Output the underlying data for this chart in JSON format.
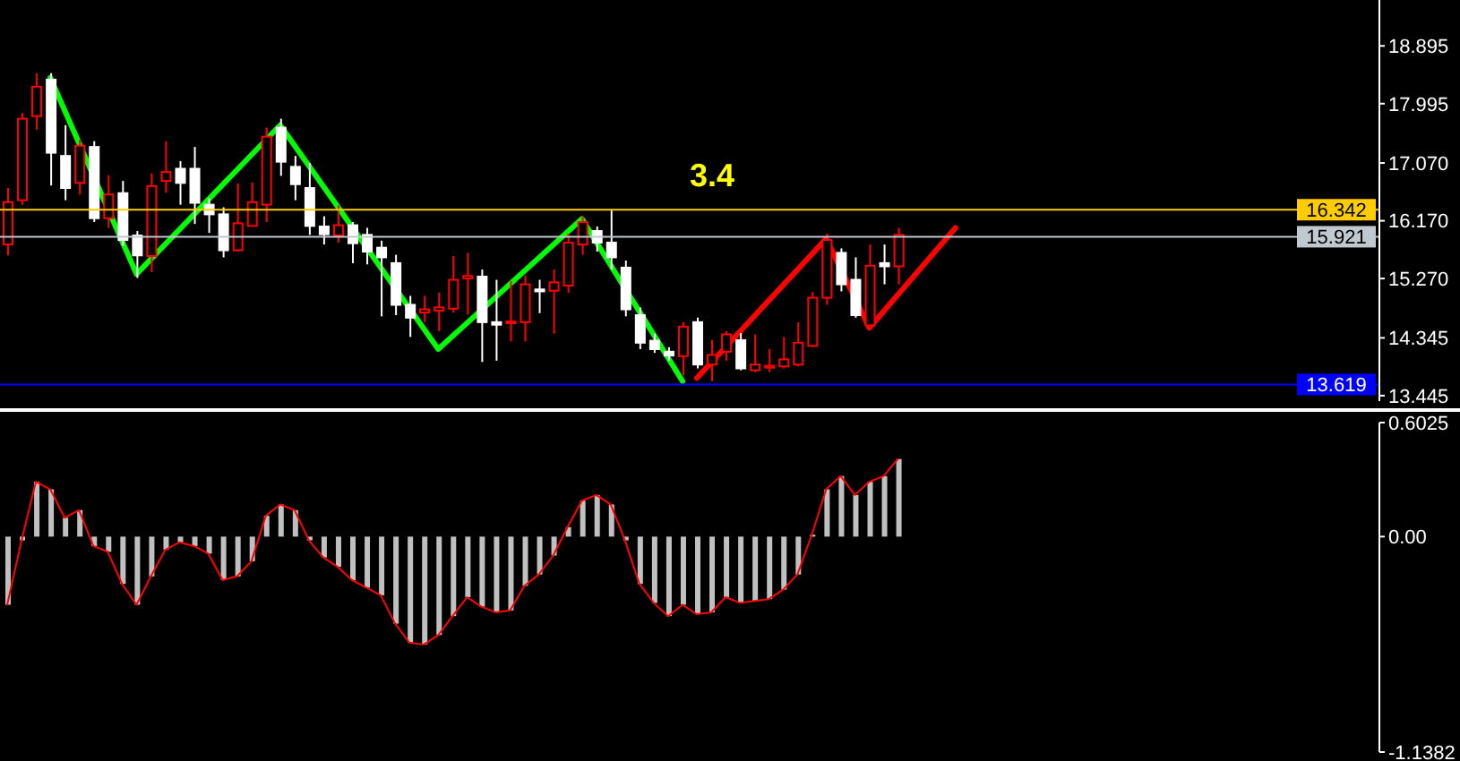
{
  "chart_data": [
    {
      "type": "candlestick",
      "categories": [
        null,
        null,
        null,
        null,
        null,
        null,
        null,
        null,
        null,
        null,
        null,
        null,
        null,
        null,
        null,
        null,
        null,
        null,
        null,
        null,
        null,
        null,
        null,
        null,
        null,
        null,
        null,
        null,
        null,
        null,
        null,
        null,
        null,
        null,
        null,
        null,
        null,
        null,
        null,
        null,
        null,
        null,
        null,
        null,
        null,
        null,
        null,
        null,
        null,
        null,
        null,
        null,
        null,
        null,
        null,
        null,
        null,
        null,
        null,
        null,
        null,
        null,
        null,
        null,
        null,
        null,
        null,
        null,
        null,
        null,
        null,
        null,
        null,
        null,
        null,
        null,
        null,
        null,
        null,
        null,
        null,
        null,
        null,
        null,
        null,
        null,
        null,
        null,
        null,
        null,
        null,
        null,
        null,
        null,
        null,
        null
      ],
      "ohlc": [
        [
          15.8,
          16.68,
          15.63,
          16.46
        ],
        [
          16.49,
          17.85,
          16.42,
          17.76
        ],
        [
          17.8,
          18.47,
          17.59,
          18.26
        ],
        [
          18.37,
          18.47,
          16.72,
          17.23
        ],
        [
          17.18,
          17.66,
          16.49,
          16.68
        ],
        [
          16.76,
          17.43,
          16.58,
          17.34
        ],
        [
          17.32,
          17.41,
          16.15,
          16.21
        ],
        [
          16.21,
          16.88,
          16.06,
          16.58
        ],
        [
          16.6,
          16.79,
          15.78,
          15.87
        ],
        [
          15.94,
          16.01,
          15.28,
          15.63
        ],
        [
          15.62,
          16.91,
          15.37,
          16.71
        ],
        [
          16.79,
          17.41,
          16.61,
          16.93
        ],
        [
          16.98,
          17.1,
          16.42,
          16.76
        ],
        [
          16.98,
          17.32,
          16.12,
          16.45
        ],
        [
          16.42,
          16.52,
          15.98,
          16.27
        ],
        [
          16.27,
          16.38,
          15.6,
          15.71
        ],
        [
          15.71,
          16.75,
          15.69,
          16.13
        ],
        [
          16.09,
          16.77,
          16.08,
          16.46
        ],
        [
          16.42,
          17.62,
          16.15,
          17.48
        ],
        [
          17.62,
          17.76,
          16.87,
          17.09
        ],
        [
          17.01,
          17.18,
          16.49,
          16.74
        ],
        [
          16.68,
          17.07,
          15.95,
          16.09
        ],
        [
          16.08,
          16.24,
          15.8,
          15.96
        ],
        [
          15.94,
          16.41,
          15.83,
          16.1
        ],
        [
          16.1,
          16.15,
          15.51,
          15.82
        ],
        [
          15.95,
          16.06,
          15.49,
          15.69
        ],
        [
          15.75,
          15.86,
          14.68,
          15.6
        ],
        [
          15.51,
          15.64,
          14.7,
          14.86
        ],
        [
          14.86,
          15.0,
          14.36,
          14.66
        ],
        [
          14.74,
          15.0,
          14.59,
          14.79
        ],
        [
          14.77,
          15.05,
          14.45,
          14.82
        ],
        [
          14.8,
          15.62,
          14.74,
          15.25
        ],
        [
          15.27,
          15.67,
          14.71,
          15.31
        ],
        [
          15.3,
          15.41,
          13.97,
          14.59
        ],
        [
          14.59,
          15.25,
          13.99,
          14.55
        ],
        [
          14.58,
          15.23,
          14.29,
          14.6
        ],
        [
          14.59,
          15.32,
          14.29,
          15.18
        ],
        [
          15.1,
          15.25,
          14.73,
          15.07
        ],
        [
          15.08,
          15.41,
          14.41,
          15.21
        ],
        [
          15.16,
          15.97,
          15.05,
          15.83
        ],
        [
          15.8,
          16.24,
          15.64,
          16.15
        ],
        [
          16.01,
          16.08,
          15.69,
          15.83
        ],
        [
          15.83,
          16.33,
          15.41,
          15.6
        ],
        [
          15.44,
          15.55,
          14.68,
          14.79
        ],
        [
          14.7,
          14.82,
          14.17,
          14.27
        ],
        [
          14.3,
          14.41,
          14.11,
          14.17
        ],
        [
          14.13,
          14.2,
          13.99,
          14.07
        ],
        [
          14.06,
          14.59,
          13.76,
          14.52
        ],
        [
          14.59,
          14.66,
          13.87,
          13.93
        ],
        [
          13.93,
          14.31,
          13.67,
          14.08
        ],
        [
          14.13,
          14.45,
          13.99,
          14.4
        ],
        [
          14.31,
          14.42,
          13.84,
          13.87
        ],
        [
          13.84,
          14.4,
          13.81,
          13.93
        ],
        [
          13.88,
          14.17,
          13.81,
          13.91
        ],
        [
          13.9,
          14.36,
          13.87,
          14.01
        ],
        [
          13.93,
          14.59,
          13.9,
          14.27
        ],
        [
          14.22,
          15.06,
          14.2,
          14.97
        ],
        [
          14.97,
          15.97,
          14.86,
          15.87
        ],
        [
          15.67,
          15.74,
          15.07,
          15.18
        ],
        [
          15.25,
          15.6,
          14.66,
          14.7
        ],
        [
          14.54,
          15.8,
          14.5,
          15.47
        ],
        [
          15.51,
          15.8,
          15.18,
          15.46
        ],
        [
          15.46,
          16.06,
          15.18,
          15.95
        ],
        null,
        null,
        null,
        null,
        null,
        null,
        null,
        null,
        null,
        null,
        null,
        null,
        null,
        null,
        null,
        null,
        null,
        null,
        null,
        null,
        null,
        null,
        null,
        null,
        null,
        null,
        null,
        null,
        null,
        null,
        null,
        null,
        null
      ],
      "colors": [
        "#ff0000",
        "#ff0000",
        "#ff0000",
        "#ffffff",
        "#ffffff",
        "#ff0000",
        "#ffffff",
        "#ff0000",
        "#ffffff",
        "#ffffff",
        "#ff0000",
        "#ff0000",
        "#ffffff",
        "#ffffff",
        "#ffffff",
        "#ffffff",
        "#ff0000",
        "#ff0000",
        "#ff0000",
        "#ffffff",
        "#ffffff",
        "#ffffff",
        "#ffffff",
        "#ff0000",
        "#ffffff",
        "#ffffff",
        "#ffffff",
        "#ffffff",
        "#ffffff",
        "#ff0000",
        "#ff0000",
        "#ff0000",
        "#ff0000",
        "#ffffff",
        "#ffffff",
        "#ff0000",
        "#ff0000",
        "#ffffff",
        "#ff0000",
        "#ff0000",
        "#ff0000",
        "#ffffff",
        "#ffffff",
        "#ffffff",
        "#ffffff",
        "#ffffff",
        "#ffffff",
        "#ff0000",
        "#ffffff",
        "#ff0000",
        "#ff0000",
        "#ffffff",
        "#ff0000",
        "#ff0000",
        "#ff0000",
        "#ff0000",
        "#ff0000",
        "#ff0000",
        "#ffffff",
        "#ffffff",
        "#ff0000",
        "#ffffff",
        "#ff0000",
        null,
        null,
        null,
        null,
        null,
        null,
        null,
        null,
        null,
        null,
        null,
        null,
        null,
        null,
        null,
        null,
        null,
        null,
        null,
        null,
        null,
        null,
        null,
        null,
        null,
        null,
        null,
        null,
        null,
        null,
        null,
        null,
        null
      ],
      "series": [
        {
          "type": "line",
          "color": "#00ff00",
          "values": [
            null,
            null,
            null,
            18.4,
            null,
            null,
            null,
            null,
            null,
            15.34,
            null,
            null,
            null,
            null,
            null,
            null,
            null,
            null,
            null,
            17.66,
            null,
            null,
            null,
            null,
            null,
            null,
            null,
            null,
            null,
            null,
            14.17,
            null,
            null,
            null,
            null,
            null,
            null,
            null,
            null,
            null,
            16.2,
            null,
            null,
            null,
            null,
            null,
            null,
            13.67,
            null,
            null,
            null,
            null,
            null,
            null,
            null,
            null,
            null,
            null,
            null,
            null,
            null,
            null,
            null,
            null,
            null,
            null,
            null,
            null,
            null,
            null,
            null,
            null,
            null,
            null,
            null,
            null,
            null,
            null,
            null,
            null,
            null,
            null,
            null,
            null,
            null,
            null,
            null,
            null,
            null,
            null,
            null,
            null,
            null,
            null,
            null,
            null
          ]
        },
        {
          "type": "line",
          "color": "#ff0000",
          "values": [
            null,
            null,
            null,
            null,
            null,
            null,
            null,
            null,
            null,
            null,
            null,
            null,
            null,
            null,
            null,
            null,
            null,
            null,
            null,
            null,
            null,
            null,
            null,
            null,
            null,
            null,
            null,
            null,
            null,
            null,
            null,
            null,
            null,
            null,
            null,
            null,
            null,
            null,
            null,
            null,
            null,
            null,
            null,
            null,
            null,
            null,
            null,
            null,
            13.72,
            null,
            null,
            null,
            null,
            null,
            null,
            null,
            null,
            15.89,
            null,
            null,
            14.5,
            null,
            null,
            null,
            null,
            null,
            16.06,
            null,
            null,
            null,
            null,
            null,
            null,
            null,
            null,
            null,
            null,
            null,
            null,
            null,
            null,
            null,
            null,
            null,
            null,
            null,
            null,
            null,
            null,
            null,
            null,
            null,
            null,
            null,
            null,
            null
          ]
        }
      ],
      "ylim": [
        13.36,
        19.61
      ],
      "yticks": [
        18.895,
        17.995,
        {
          "value": 17.07,
          "label": "17.070"
        },
        {
          "value": 16.17,
          "label": "16.170"
        },
        {
          "value": 15.27,
          "label": "15.270"
        },
        14.345,
        13.445
      ],
      "ref_lines": [
        {
          "axis": "y",
          "value": 16.342,
          "label": "16.342",
          "color": "#ffcc00"
        },
        {
          "axis": "y",
          "value": 15.921,
          "label": "15.921",
          "color": "#c0c8d0"
        },
        {
          "axis": "y",
          "value": 13.619,
          "label": "13.619",
          "color": "#0000ff"
        }
      ],
      "annotations": [
        "3.4"
      ],
      "tick_labels": "y"
    },
    {
      "type": "bar",
      "categories": [
        null,
        null,
        null,
        null,
        null,
        null,
        null,
        null,
        null,
        null,
        null,
        null,
        null,
        null,
        null,
        null,
        null,
        null,
        null,
        null,
        null,
        null,
        null,
        null,
        null,
        null,
        null,
        null,
        null,
        null,
        null,
        null,
        null,
        null,
        null,
        null,
        null,
        null,
        null,
        null,
        null,
        null,
        null,
        null,
        null,
        null,
        null,
        null,
        null,
        null,
        null,
        null,
        null,
        null,
        null,
        null,
        null,
        null,
        null,
        null,
        null,
        null,
        null,
        null,
        null,
        null,
        null,
        null,
        null,
        null,
        null,
        null,
        null,
        null,
        null,
        null,
        null,
        null,
        null,
        null,
        null,
        null,
        null,
        null,
        null,
        null,
        null,
        null,
        null,
        null,
        null,
        null,
        null,
        null,
        null,
        null
      ],
      "series": [
        {
          "type": "bar",
          "color": "#c0c0c0",
          "values": [
            -0.36,
            -0.02,
            0.29,
            0.25,
            0.1,
            0.14,
            -0.05,
            -0.08,
            -0.25,
            -0.36,
            -0.21,
            -0.07,
            -0.03,
            -0.05,
            -0.09,
            -0.23,
            -0.21,
            -0.13,
            0.11,
            0.17,
            0.14,
            -0.02,
            -0.11,
            -0.16,
            -0.23,
            -0.27,
            -0.31,
            -0.46,
            -0.56,
            -0.57,
            -0.52,
            -0.42,
            -0.32,
            -0.37,
            -0.4,
            -0.39,
            -0.26,
            -0.2,
            -0.1,
            0.05,
            0.19,
            0.22,
            0.17,
            -0.02,
            -0.25,
            -0.35,
            -0.42,
            -0.36,
            -0.41,
            -0.4,
            -0.32,
            -0.35,
            -0.34,
            -0.33,
            -0.28,
            -0.2,
            0.01,
            0.25,
            0.32,
            0.22,
            0.29,
            0.32,
            0.41,
            null,
            null,
            null,
            null,
            null,
            null,
            null,
            null,
            null,
            null,
            null,
            null,
            null,
            null,
            null,
            null,
            null,
            null,
            null,
            null,
            null,
            null,
            null,
            null,
            null,
            null,
            null,
            null,
            null,
            null,
            null,
            null,
            null
          ]
        },
        {
          "type": "line",
          "color": "#ff0000",
          "values": [
            -0.36,
            -0.02,
            0.29,
            0.25,
            0.1,
            0.14,
            -0.05,
            -0.08,
            -0.25,
            -0.36,
            -0.21,
            -0.07,
            -0.03,
            -0.05,
            -0.09,
            -0.23,
            -0.21,
            -0.13,
            0.11,
            0.17,
            0.14,
            -0.02,
            -0.11,
            -0.16,
            -0.23,
            -0.27,
            -0.31,
            -0.46,
            -0.56,
            -0.57,
            -0.52,
            -0.42,
            -0.32,
            -0.37,
            -0.4,
            -0.39,
            -0.26,
            -0.2,
            -0.1,
            0.05,
            0.19,
            0.22,
            0.17,
            -0.02,
            -0.25,
            -0.35,
            -0.42,
            -0.36,
            -0.41,
            -0.4,
            -0.32,
            -0.35,
            -0.34,
            -0.33,
            -0.28,
            -0.2,
            0.01,
            0.25,
            0.32,
            0.22,
            0.29,
            0.32,
            0.41,
            null,
            null,
            null,
            null,
            null,
            null,
            null,
            null,
            null,
            null,
            null,
            null,
            null,
            null,
            null,
            null,
            null,
            null,
            null,
            null,
            null,
            null,
            null,
            null,
            null,
            null,
            null,
            null,
            null,
            null,
            null,
            null,
            null
          ]
        }
      ],
      "ylim": [
        -1.1382,
        0.6025
      ],
      "yticks": [
        0.6025,
        {
          "value": 0,
          "label": "0.00"
        },
        -1.1382
      ],
      "tick_labels": "y"
    }
  ]
}
